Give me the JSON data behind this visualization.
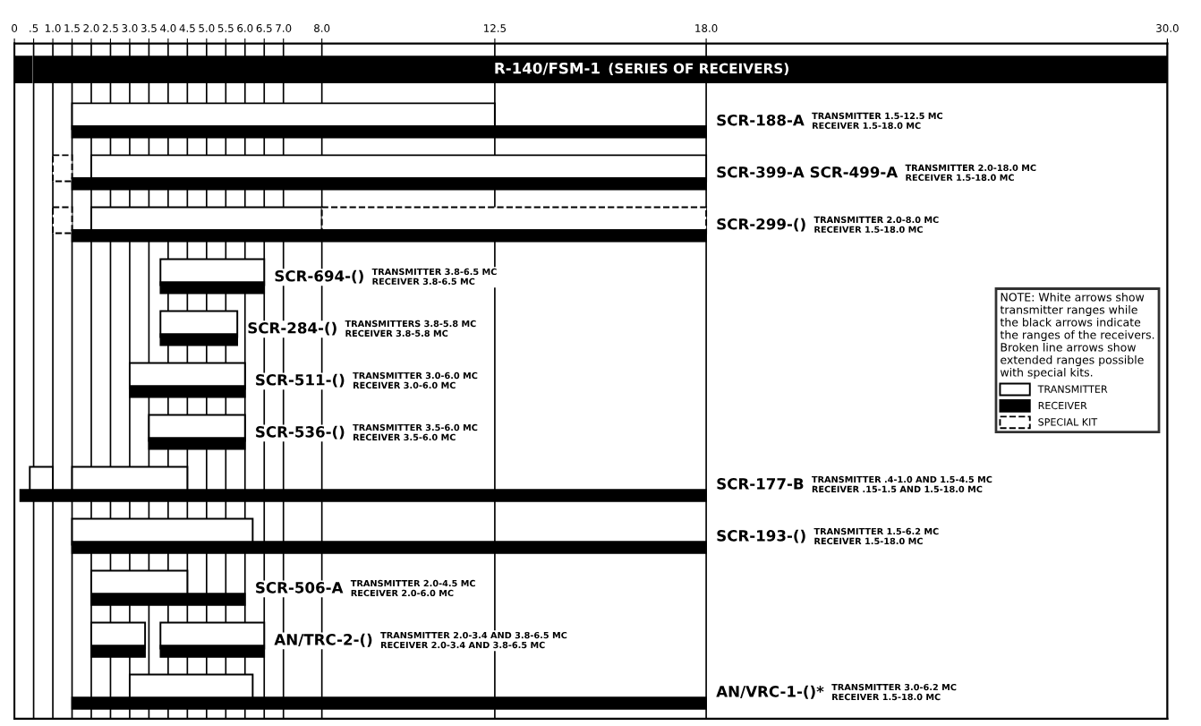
{
  "chart_data": {
    "type": "bar",
    "orientation": "horizontal",
    "categories": [
      "R-140/FSM-1",
      "SCR-188-A",
      "SCR-399-A SCR-499-A",
      "SCR-299-()",
      "SCR-694-()",
      "SCR-284-()",
      "SCR-511-()",
      "SCR-536-()",
      "SCR-177-B",
      "SCR-193-()",
      "SCR-506-A",
      "AN/TRC-2-()",
      "AN/VRC-1-()*"
    ],
    "series": [
      {
        "name": "TRANSMITTER",
        "color": "#ffffff",
        "base": [
          null,
          1.5,
          2.0,
          2.0,
          3.8,
          3.8,
          3.0,
          3.5,
          0.4,
          1.5,
          2.0,
          2.0,
          3.0
        ],
        "values": [
          null,
          11.0,
          16.0,
          6.0,
          2.7,
          2.0,
          3.0,
          2.5,
          0.6,
          4.7,
          2.5,
          1.4,
          3.2
        ]
      },
      {
        "color": "#ffffff",
        "base": [
          null,
          null,
          null,
          null,
          null,
          null,
          null,
          null,
          1.5,
          null,
          null,
          3.8,
          null
        ],
        "values": [
          null,
          null,
          null,
          null,
          null,
          null,
          null,
          null,
          3.0,
          null,
          null,
          2.7,
          null
        ]
      },
      {
        "name": "RECEIVER",
        "color": "#000000",
        "base": [
          0,
          1.5,
          1.5,
          1.5,
          3.8,
          3.8,
          3.0,
          3.5,
          0.15,
          1.5,
          2.0,
          2.0,
          1.5
        ],
        "values": [
          0.45,
          16.5,
          16.5,
          16.5,
          2.7,
          2.0,
          3.0,
          2.5,
          1.35,
          16.5,
          4.0,
          1.4,
          16.5
        ]
      },
      {
        "color": "#000000",
        "base": [
          0.5,
          null,
          null,
          null,
          null,
          null,
          null,
          null,
          1.5,
          null,
          null,
          3.8,
          null
        ],
        "values": [
          29.5,
          null,
          null,
          null,
          null,
          null,
          null,
          null,
          16.5,
          null,
          null,
          2.7,
          null
        ]
      },
      {
        "name": "SPECIAL KIT",
        "color": "#ffffff",
        "line_style": "dashed",
        "base": [
          null,
          null,
          1.0,
          1.0,
          null,
          null,
          null,
          null,
          null,
          null,
          null,
          null,
          null
        ],
        "values": [
          null,
          null,
          0.5,
          0.5,
          null,
          null,
          null,
          null,
          null,
          null,
          null,
          null,
          null
        ]
      },
      {
        "color": "#ffffff",
        "line_style": "dashed",
        "base": [
          null,
          null,
          null,
          8.0,
          null,
          null,
          null,
          null,
          null,
          null,
          null,
          null,
          null
        ],
        "values": [
          null,
          null,
          null,
          10.0,
          null,
          null,
          null,
          null,
          null,
          null,
          null,
          null,
          null
        ]
      }
    ],
    "annotations": [
      "(SERIES OF RECEIVERS)",
      "TRANSMITTER 1.5-12.5 MC\nRECEIVER 1.5-18.0 MC",
      "TRANSMITTER 2.0-18.0 MC\nRECEIVER 1.5-18.0 MC",
      "TRANSMITTER 2.0-8.0 MC\nRECEIVER 1.5-18.0 MC",
      "TRANSMITTER 3.8-6.5 MC\nRECEIVER 3.8-6.5 MC",
      "TRANSMITTERS 3.8-5.8 MC\nRECEIVER 3.8-5.8 MC",
      "TRANSMITTER 3.0-6.0 MC\nRECEIVER 3.0-6.0 MC",
      "TRANSMITTER 3.5-6.0 MC\nRECEIVER 3.5-6.0 MC",
      "TRANSMITTER .4-1.0 AND 1.5-4.5 MC\nRECEIVER .15-1.5 AND 1.5-18.0 MC",
      "TRANSMITTER 1.5-6.2 MC\nRECEIVER 1.5-18.0 MC",
      "TRANSMITTER 2.0-4.5 MC\nRECEIVER 2.0-6.0 MC",
      "TRANSMITTER 2.0-3.4 AND 3.8-6.5 MC\nRECEIVER 2.0-3.4 AND 3.8-6.5 MC",
      "TRANSMITTER 3.0-6.2 MC\nRECEIVER 1.5-18.0 MC"
    ],
    "legend_title": "NOTE: White arrows show\ntransmitter ranges while\nthe black arrows indicate\nthe ranges of the receivers.\nBroken line arrows show\nextended ranges possible\nwith special kits.",
    "legend": "right",
    "xlim": [
      0,
      30
    ],
    "xticks": [
      0,
      {
        "value": 0.5,
        "label": ".5"
      },
      {
        "value": 1.0,
        "label": "1.0"
      },
      {
        "value": 1.5,
        "label": "1.5"
      },
      {
        "value": 2.0,
        "label": "2.0"
      },
      {
        "value": 2.5,
        "label": "2.5"
      },
      {
        "value": 3.0,
        "label": "3.0"
      },
      {
        "value": 3.5,
        "label": "3.5"
      },
      {
        "value": 4.0,
        "label": "4.0"
      },
      {
        "value": 4.5,
        "label": "4.5"
      },
      {
        "value": 5.0,
        "label": "5.0"
      },
      {
        "value": 5.5,
        "label": "5.5"
      },
      {
        "value": 6.0,
        "label": "6.0"
      },
      {
        "value": 6.5,
        "label": "6.5"
      },
      {
        "value": 7.0,
        "label": "7.0"
      },
      {
        "value": 8.0,
        "label": "8.0"
      },
      {
        "value": 12.5,
        "label": "12.5"
      },
      {
        "value": 18.0,
        "label": "18.0"
      },
      {
        "value": 30.0,
        "label": "30.0"
      }
    ],
    "grid": "x"
  }
}
